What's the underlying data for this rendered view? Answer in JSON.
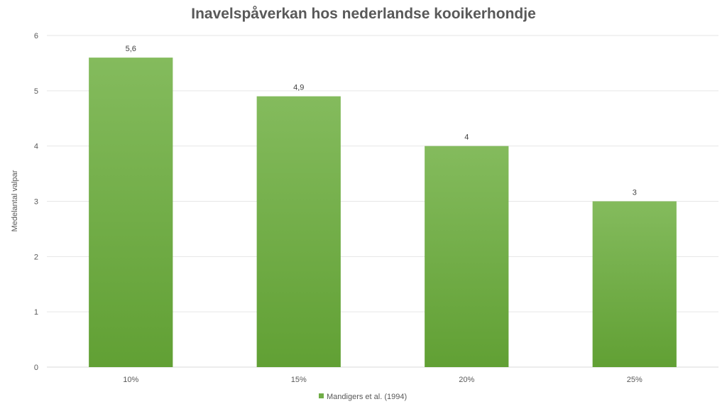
{
  "chart_data": {
    "type": "bar",
    "title": "Inavelspåverkan hos nederlandse kooikerhondje",
    "xlabel": "",
    "ylabel": "Medelantal valpar",
    "categories": [
      "10%",
      "15%",
      "20%",
      "25%"
    ],
    "series": [
      {
        "name": "Mandigers et al. (1994)",
        "values": [
          5.6,
          4.9,
          4,
          3
        ],
        "data_labels": [
          "5,6",
          "4,9",
          "4",
          "3"
        ],
        "color": "#70ad47"
      }
    ],
    "ylim": [
      0,
      6
    ],
    "yticks": [
      0,
      1,
      2,
      3,
      4,
      5,
      6
    ],
    "grid": true,
    "legend": "bottom"
  }
}
